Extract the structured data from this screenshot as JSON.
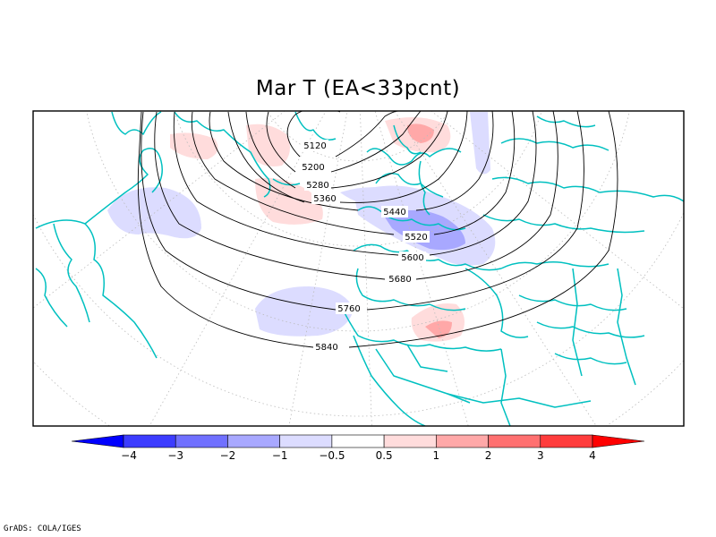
{
  "map": {
    "title": "Mar T (EA<33pcnt)",
    "credit": "GrADS: COLA/IGES",
    "contour_labels": [
      "5120",
      "5200",
      "5280",
      "5360",
      "5440",
      "5520",
      "5600",
      "5680",
      "5760",
      "5840"
    ],
    "colorbar": {
      "colors": [
        "#0000ff",
        "#3c3cff",
        "#7070ff",
        "#a8a8ff",
        "#dcdcff",
        "#ffffff",
        "#ffdcdc",
        "#ffa8a8",
        "#ff7070",
        "#ff3c3c",
        "#ff0000"
      ],
      "labels": [
        "−4",
        "−3",
        "−2",
        "−1",
        "−0.5",
        "0.5",
        "1",
        "2",
        "3",
        "4"
      ]
    },
    "coast_color": "#00c0c0"
  }
}
